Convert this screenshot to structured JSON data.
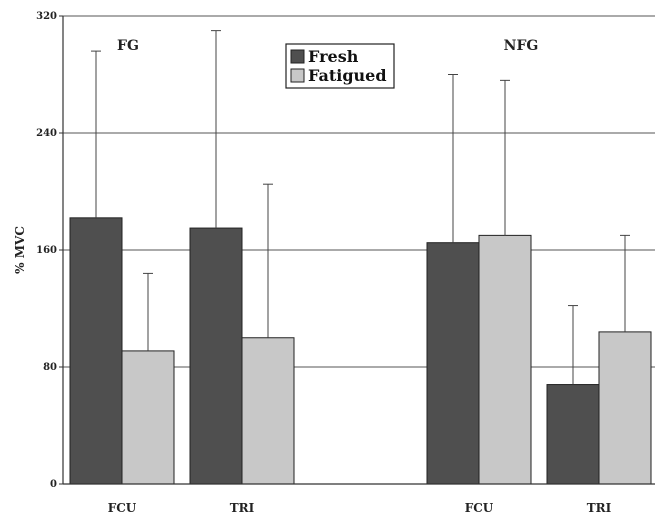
{
  "chart_data": {
    "type": "bar",
    "title": "",
    "xlabel": "",
    "ylabel": "% MVC",
    "ylim": [
      0,
      320
    ],
    "yticks": [
      0,
      80,
      160,
      240,
      320
    ],
    "grid": true,
    "legend_position": "top-center",
    "colors": {
      "Fresh": "#4f4f4f",
      "Fatigued": "#c8c8c8"
    },
    "groups": [
      {
        "name": "FG",
        "categories": [
          "FCU",
          "TRI"
        ],
        "series": [
          {
            "name": "Fresh",
            "values": [
              182,
              175
            ],
            "error_upper": [
              296,
              310
            ]
          },
          {
            "name": "Fatigued",
            "values": [
              91,
              100
            ],
            "error_upper": [
              144,
              205
            ]
          }
        ]
      },
      {
        "name": "NFG",
        "categories": [
          "FCU",
          "TRI"
        ],
        "series": [
          {
            "name": "Fresh",
            "values": [
              165,
              68
            ],
            "error_upper": [
              280,
              122
            ]
          },
          {
            "name": "Fatigued",
            "values": [
              170,
              104
            ],
            "error_upper": [
              276,
              170
            ]
          }
        ]
      }
    ]
  }
}
